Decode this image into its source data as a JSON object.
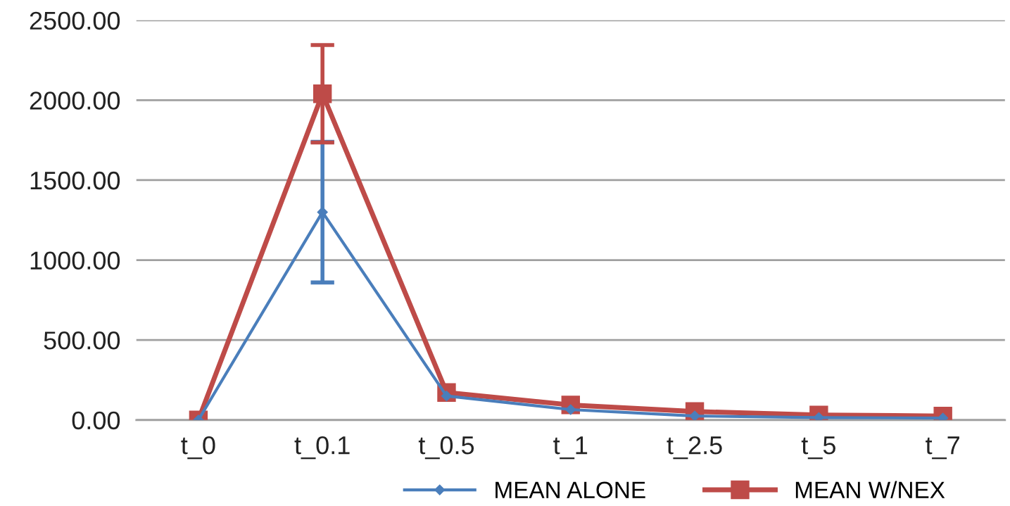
{
  "chart_data": {
    "type": "line",
    "categories": [
      "t_0",
      "t_0.1",
      "t_0.5",
      "t_1",
      "t_2.5",
      "t_5",
      "t_7"
    ],
    "series": [
      {
        "name": "MEAN ALONE",
        "color": "#4a7ebb",
        "marker": "diamond",
        "values": [
          0,
          1300,
          150,
          65,
          25,
          15,
          12
        ],
        "errors": [
          null,
          440,
          null,
          null,
          null,
          null,
          null
        ]
      },
      {
        "name": "MEAN W/NEX",
        "color": "#be4b48",
        "marker": "square",
        "values": [
          0,
          2040,
          172,
          94,
          53,
          31,
          25
        ],
        "errors": [
          null,
          305,
          null,
          null,
          null,
          null,
          null
        ]
      }
    ],
    "ylim": [
      0,
      2500
    ],
    "yticks": [
      {
        "value": 0,
        "label": "0.00"
      },
      {
        "value": 500,
        "label": "500.00"
      },
      {
        "value": 1000,
        "label": "1000.00"
      },
      {
        "value": 1500,
        "label": "1500.00"
      },
      {
        "value": 2000,
        "label": "2000.00"
      },
      {
        "value": 2500,
        "label": "2500.00"
      }
    ],
    "grid": "y",
    "legend": "bottom",
    "line_style": "solid"
  }
}
